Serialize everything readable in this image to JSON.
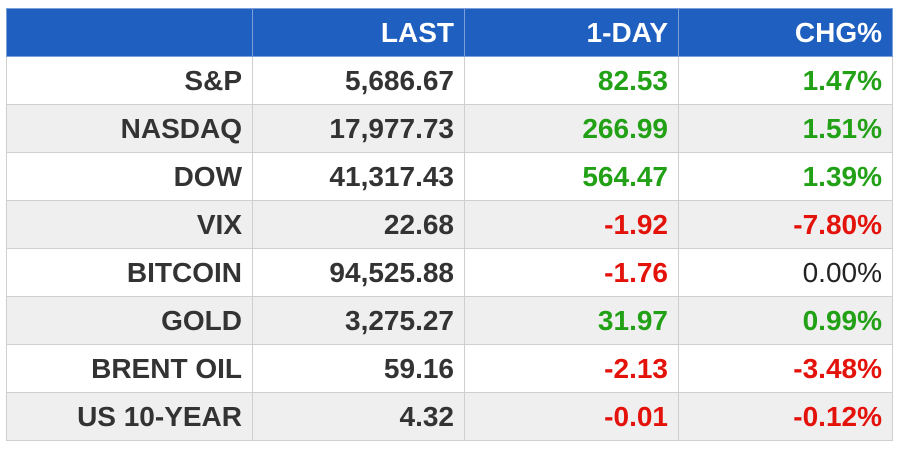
{
  "colors": {
    "header_bg": "#1e5fbf",
    "positive": "#22a116",
    "negative": "#e3120b",
    "neutral": "#222222"
  },
  "header": {
    "blank": "",
    "last": "LAST",
    "one_day": "1-DAY",
    "chg_pct": "CHG%"
  },
  "rows": [
    {
      "name": "S&P",
      "last": "5,686.67",
      "one_day": "82.53",
      "chg_pct": "1.47%",
      "dir": "pos"
    },
    {
      "name": "NASDAQ",
      "last": "17,977.73",
      "one_day": "266.99",
      "chg_pct": "1.51%",
      "dir": "pos"
    },
    {
      "name": "DOW",
      "last": "41,317.43",
      "one_day": "564.47",
      "chg_pct": "1.39%",
      "dir": "pos"
    },
    {
      "name": "VIX",
      "last": "22.68",
      "one_day": "-1.92",
      "chg_pct": "-7.80%",
      "dir": "neg"
    },
    {
      "name": "BITCOIN",
      "last": "94,525.88",
      "one_day": "-1.76",
      "chg_pct": "0.00%",
      "dir": "neg",
      "chg_dir": "flat"
    },
    {
      "name": "GOLD",
      "last": "3,275.27",
      "one_day": "31.97",
      "chg_pct": "0.99%",
      "dir": "pos"
    },
    {
      "name": "BRENT OIL",
      "last": "59.16",
      "one_day": "-2.13",
      "chg_pct": "-3.48%",
      "dir": "neg"
    },
    {
      "name": "US 10-YEAR",
      "last": "4.32",
      "one_day": "-0.01",
      "chg_pct": "-0.12%",
      "dir": "neg"
    }
  ]
}
